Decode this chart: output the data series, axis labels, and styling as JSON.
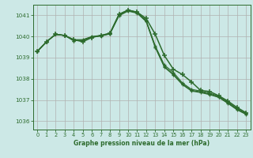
{
  "title": "Graphe pression niveau de la mer (hPa)",
  "bg_color": "#cce8e6",
  "grid_color": "#b0b0b0",
  "line_color": "#2d6b2d",
  "ylim": [
    1035.6,
    1041.5
  ],
  "xlim": [
    -0.5,
    23.5
  ],
  "yticks": [
    1036,
    1037,
    1038,
    1039,
    1040,
    1041
  ],
  "xticks": [
    0,
    1,
    2,
    3,
    4,
    5,
    6,
    7,
    8,
    9,
    10,
    11,
    12,
    13,
    14,
    15,
    16,
    17,
    18,
    19,
    20,
    21,
    22,
    23
  ],
  "series1": [
    1039.3,
    1039.75,
    1040.1,
    1040.05,
    1039.85,
    1039.75,
    1039.95,
    1040.05,
    1040.15,
    1041.05,
    1041.25,
    1041.15,
    1040.85,
    1040.1,
    1039.1,
    1038.45,
    1038.2,
    1037.85,
    1037.45,
    1037.4,
    1037.2,
    1036.95,
    1036.65,
    1036.4
  ],
  "series2": [
    1039.3,
    1039.75,
    1040.1,
    1040.05,
    1039.85,
    1039.85,
    1040.0,
    1040.05,
    1040.15,
    1041.05,
    1041.25,
    1041.15,
    1040.75,
    1039.55,
    1038.65,
    1038.3,
    1037.8,
    1037.5,
    1037.42,
    1037.32,
    1037.18,
    1036.9,
    1036.6,
    1036.37
  ],
  "series3": [
    1039.3,
    1039.75,
    1040.1,
    1040.05,
    1039.8,
    1039.82,
    1039.98,
    1040.03,
    1040.13,
    1041.0,
    1041.22,
    1041.12,
    1040.72,
    1039.5,
    1038.58,
    1038.22,
    1037.75,
    1037.45,
    1037.38,
    1037.28,
    1037.14,
    1036.86,
    1036.56,
    1036.33
  ],
  "series4": [
    1039.3,
    1039.75,
    1040.1,
    1040.05,
    1039.8,
    1039.82,
    1039.97,
    1040.02,
    1040.12,
    1040.98,
    1041.2,
    1041.1,
    1040.7,
    1039.48,
    1038.55,
    1038.18,
    1037.72,
    1037.42,
    1037.35,
    1037.25,
    1037.12,
    1036.84,
    1036.54,
    1036.32
  ]
}
